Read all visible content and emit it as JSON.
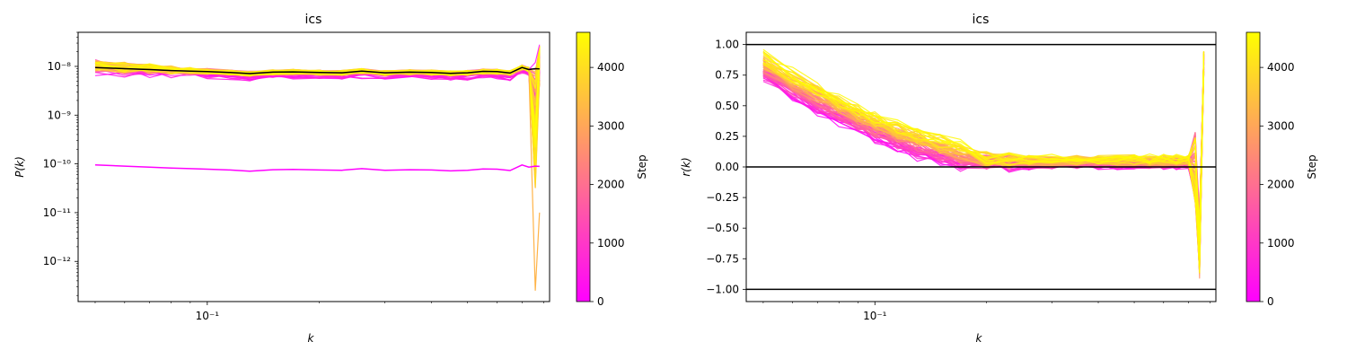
{
  "chart_data": [
    {
      "type": "line",
      "title": "ics",
      "xlabel": "k",
      "ylabel": "P(k)",
      "xscale": "log",
      "yscale": "log",
      "xlim": [
        0.045,
        0.83
      ],
      "ylim": [
        1.5e-13,
        5e-08
      ],
      "x_tick_labels": [
        {
          "value": 0.1,
          "label": "10⁻¹"
        }
      ],
      "y_tick_labels": [
        {
          "value": 1e-12,
          "label": "10⁻¹²"
        },
        {
          "value": 1e-11,
          "label": "10⁻¹¹"
        },
        {
          "value": 1e-10,
          "label": "10⁻¹⁰"
        },
        {
          "value": 1e-09,
          "label": "10⁻⁹"
        },
        {
          "value": 1e-08,
          "label": "10⁻⁸"
        }
      ],
      "k": [
        0.05,
        0.06,
        0.07,
        0.08,
        0.09,
        0.1,
        0.115,
        0.13,
        0.15,
        0.17,
        0.2,
        0.23,
        0.26,
        0.3,
        0.35,
        0.4,
        0.45,
        0.5,
        0.55,
        0.6,
        0.65,
        0.7,
        0.73,
        0.76,
        0.78
      ],
      "series": [
        {
          "color": "#000000",
          "values": [
            9.5e-09,
            9e-09,
            8.6e-09,
            8.2e-09,
            8e-09,
            7.8e-09,
            7.5e-09,
            7.1e-09,
            7.6e-09,
            7.7e-09,
            7.5e-09,
            7.4e-09,
            8e-09,
            7.4e-09,
            7.6e-09,
            7.5e-09,
            7.2e-09,
            7.4e-09,
            7.9e-09,
            7.8e-09,
            7.3e-09,
            9.5e-09,
            8.6e-09,
            9e-09,
            8.9e-09
          ]
        },
        {
          "color": "#ff00ff",
          "values": [
            9.5e-11,
            9e-11,
            8.6e-11,
            8.2e-11,
            8e-11,
            7.8e-11,
            7.5e-11,
            7.1e-11,
            7.6e-11,
            7.7e-11,
            7.5e-11,
            7.4e-11,
            8e-11,
            7.4e-11,
            7.6e-11,
            7.5e-11,
            7.2e-11,
            7.4e-11,
            7.9e-11,
            7.8e-11,
            7.3e-11,
            9.5e-11,
            8.6e-11,
            9e-11,
            8.9e-11
          ]
        }
      ]
    },
    {
      "type": "line",
      "title": "ics",
      "xlabel": "k",
      "ylabel": "r(k)",
      "xscale": "log",
      "xlim": [
        0.045,
        0.83
      ],
      "ylim": [
        -1.1,
        1.1
      ],
      "x_tick_labels": [
        {
          "value": 0.1,
          "label": "10⁻¹"
        }
      ],
      "y_tick_labels": [
        {
          "value": 1.0,
          "label": "1.00"
        },
        {
          "value": 0.75,
          "label": "0.75"
        },
        {
          "value": 0.5,
          "label": "0.50"
        },
        {
          "value": 0.25,
          "label": "0.25"
        },
        {
          "value": 0.0,
          "label": "0.00"
        },
        {
          "value": -0.25,
          "label": "−0.25"
        },
        {
          "value": -0.5,
          "label": "−0.50"
        },
        {
          "value": -0.75,
          "label": "−0.75"
        },
        {
          "value": -1.0,
          "label": "−1.00"
        }
      ],
      "reference_lines": [
        1.0,
        0.0,
        -1.0
      ]
    }
  ],
  "colorbar": {
    "label": "Step",
    "range": [
      0,
      4600
    ],
    "colors": {
      "start": "#ff00ff",
      "end": "#ffff00"
    },
    "tick_labels": [
      {
        "value": 0,
        "label": "0"
      },
      {
        "value": 1000,
        "label": "1000"
      },
      {
        "value": 2000,
        "label": "2000"
      },
      {
        "value": 3000,
        "label": "3000"
      },
      {
        "value": 4000,
        "label": "4000"
      }
    ]
  }
}
